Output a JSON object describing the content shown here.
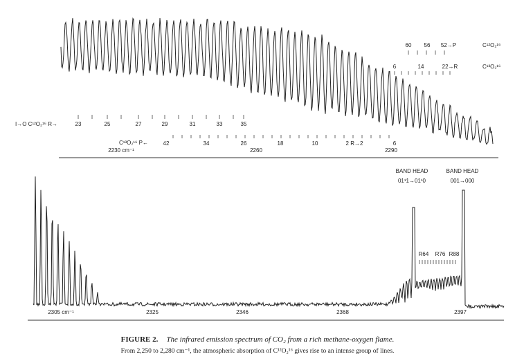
{
  "figure": {
    "top_panel": {
      "axis_labels": [
        "2230 cm⁻¹",
        "2260",
        "2290"
      ],
      "c12_r_label": "I→O  C¹²O₂¹⁶  R→",
      "c12_r_numbers": [
        "23",
        "25",
        "27",
        "29",
        "31",
        "33",
        "35"
      ],
      "c13_p_label": "C¹³O₂¹⁶  P←",
      "c13_p_numbers": [
        "42",
        "34",
        "26",
        "18",
        "10",
        "2 R→2",
        "6"
      ],
      "right_p_numbers": [
        "60",
        "56",
        "52→P"
      ],
      "right_p_species": "C¹²O₂¹⁶",
      "right_r_numbers": [
        "6",
        "14",
        "22→R"
      ],
      "right_r_species": "C¹³O₂¹⁶"
    },
    "bottom_panel": {
      "axis_labels": [
        "2305 cm⁻¹",
        "2325",
        "2346",
        "2368",
        "2397"
      ],
      "band_head_1": {
        "title": "BAND HEAD",
        "transition": "01¹1→01¹0"
      },
      "band_head_2": {
        "title": "BAND HEAD",
        "transition": "001→000"
      },
      "r_labels": [
        "R64",
        "R76",
        "R88"
      ]
    },
    "caption": {
      "title": "FIGURE 2.",
      "text": "The infrared emission spectrum of CO₂ from a rich methane-oxygen flame.",
      "note": "From 2,250 to 2,280 cm⁻¹, the atmospheric absorption of C¹²O₂¹⁶ gives rise to an intense group of lines."
    }
  }
}
